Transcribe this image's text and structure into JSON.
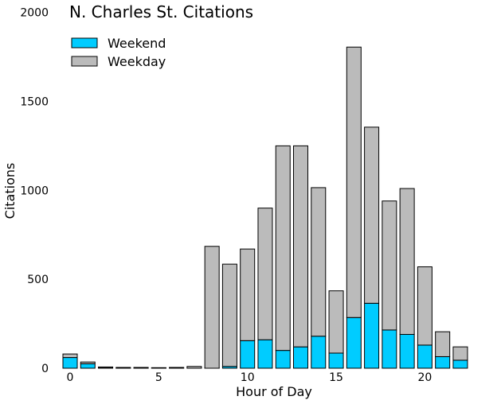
{
  "chart_data": {
    "type": "bar",
    "stacked": true,
    "title": "N. Charles St. Citations",
    "xlabel": "Hour of Day",
    "ylabel": "Citations",
    "x": [
      0,
      1,
      2,
      3,
      4,
      5,
      6,
      7,
      8,
      9,
      10,
      11,
      12,
      13,
      14,
      15,
      16,
      17,
      18,
      19,
      20,
      21,
      22
    ],
    "xticks": [
      0,
      5,
      10,
      15,
      20
    ],
    "yticks": [
      0,
      500,
      1000,
      1500,
      2000
    ],
    "xlim": [
      -0.5,
      23
    ],
    "ylim": [
      0,
      2000
    ],
    "grid": false,
    "legend_position": "top-left",
    "series": [
      {
        "name": "Weekend",
        "color": "#00ccff",
        "values": [
          60,
          25,
          2,
          0,
          0,
          0,
          0,
          0,
          0,
          10,
          155,
          160,
          100,
          120,
          180,
          85,
          285,
          365,
          215,
          190,
          130,
          65,
          45
        ]
      },
      {
        "name": "Weekday",
        "color": "#bbbbbb",
        "values": [
          20,
          10,
          5,
          3,
          2,
          0,
          3,
          10,
          685,
          575,
          515,
          740,
          1150,
          1130,
          835,
          350,
          1520,
          990,
          725,
          820,
          440,
          140,
          75
        ]
      }
    ]
  }
}
